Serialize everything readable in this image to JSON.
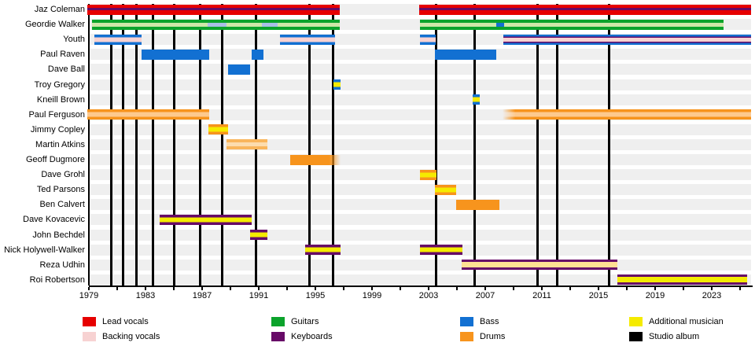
{
  "chart_data": {
    "type": "timeline",
    "description": "Band members timeline (gantt-style) with studio album release markers",
    "palette": {
      "lead_vocals": "#e60000",
      "backing_vocals": "#f7d2d2",
      "guitars": "#0ba32b",
      "keyboards": "#670a67",
      "bass": "#1270d2",
      "drums": "#f7941d",
      "additional": "#f5eb00",
      "studio_album": "#000000",
      "gloss_green": "#cde7a8",
      "gloss_orange": "#fdc98e",
      "drums_faded": "#f9b55c",
      "gloss_orange_pale": "#fcdcae",
      "bass_pale": "#a9bfe6",
      "additional_pale": "#ffe193",
      "lane_gray": "#efefef"
    },
    "axis": {
      "label_years": [
        1979,
        1983,
        1987,
        1991,
        1995,
        1999,
        2003,
        2007,
        2011,
        2015,
        2019,
        2023
      ],
      "minor_tick_start": 1979,
      "minor_tick_end": 2025,
      "minor_tick_step": 2,
      "domain_start": 1978.9,
      "domain_end": 2025.8
    },
    "albums": [
      1980.6,
      1981.4,
      1982.35,
      1983.5,
      1985.05,
      1986.85,
      1988.4,
      1990.8,
      1994.6,
      1996.25,
      2003.5,
      2006.25,
      2010.7,
      2012.1,
      2015.75
    ],
    "members": [
      {
        "name": "Jaz Coleman",
        "bars": [
          {
            "start": 1978.9,
            "end": 1996.75,
            "layers": [
              [
                "lead_vocals",
                4
              ],
              [
                "keyboards",
                3
              ],
              [
                "lead_vocals",
                6
              ]
            ]
          },
          {
            "start": 2002.35,
            "end": 2025.8,
            "layers": [
              [
                "lead_vocals",
                4
              ],
              [
                "keyboards",
                3
              ],
              [
                "lead_vocals",
                6
              ]
            ]
          }
        ]
      },
      {
        "name": "Geordie Walker",
        "bars": [
          {
            "start": 1979.2,
            "end": 1996.75,
            "layers": [
              [
                "guitars",
                4
              ],
              [
                "gloss_green",
                5
              ],
              [
                "guitars",
                4
              ]
            ],
            "overlays": [
              [
                1987.4,
                1988.7,
                "bass_pale"
              ],
              [
                1991.2,
                1992.35,
                "bass_pale"
              ]
            ]
          },
          {
            "start": 2002.4,
            "end": 2023.85,
            "layers": [
              [
                "guitars",
                4
              ],
              [
                "gloss_green",
                5
              ],
              [
                "guitars",
                4
              ]
            ],
            "overlays": [
              [
                2007.75,
                2008.35,
                "bass"
              ]
            ]
          }
        ]
      },
      {
        "name": "Youth",
        "bars": [
          {
            "start": 1979.4,
            "end": 1982.7,
            "layers": [
              [
                "bass",
                3.5
              ],
              [
                "backing_vocals",
                6
              ],
              [
                "bass",
                3.5
              ]
            ]
          },
          {
            "start": 1992.5,
            "end": 1996.4,
            "layers": [
              [
                "bass",
                3.5
              ],
              [
                "backing_vocals",
                6
              ],
              [
                "bass",
                3.5
              ]
            ]
          },
          {
            "start": 2002.4,
            "end": 2003.5,
            "layers": [
              [
                "bass",
                3.5
              ],
              [
                "backing_vocals",
                6
              ],
              [
                "bass",
                3.5
              ]
            ]
          },
          {
            "start": 2008.3,
            "end": 2025.8,
            "layers": [
              [
                "bass",
                2.5
              ],
              [
                "keyboards",
                1.5
              ],
              [
                "backing_vocals",
                5
              ],
              [
                "keyboards",
                1.5
              ],
              [
                "bass",
                2.5
              ]
            ]
          }
        ]
      },
      {
        "name": "Paul Raven",
        "bars": [
          {
            "start": 1982.7,
            "end": 1987.5,
            "layers": [
              [
                "bass",
                1
              ]
            ]
          },
          {
            "start": 1990.5,
            "end": 1991.35,
            "layers": [
              [
                "bass",
                1
              ]
            ]
          },
          {
            "start": 2003.45,
            "end": 2007.8,
            "layers": [
              [
                "bass",
                1
              ]
            ]
          }
        ]
      },
      {
        "name": "Dave Ball",
        "bars": [
          {
            "start": 1988.85,
            "end": 1990.4,
            "layers": [
              [
                "bass",
                1
              ]
            ]
          }
        ]
      },
      {
        "name": "Troy Gregory",
        "bars": [
          {
            "start": 1996.3,
            "end": 1996.8,
            "layers": [
              [
                "bass",
                3.5
              ],
              [
                "additional",
                6
              ],
              [
                "bass",
                3.5
              ]
            ]
          }
        ]
      },
      {
        "name": "Kneill Brown",
        "bars": [
          {
            "start": 2006.1,
            "end": 2006.6,
            "layers": [
              [
                "bass",
                3.5
              ],
              [
                "additional",
                6
              ],
              [
                "bass",
                3.5
              ]
            ]
          }
        ]
      },
      {
        "name": "Paul Ferguson",
        "bars": [
          {
            "start": 1978.9,
            "end": 1987.5,
            "layers": [
              [
                "drums",
                3.5
              ],
              [
                "gloss_orange",
                6
              ],
              [
                "drums",
                3.5
              ]
            ]
          },
          {
            "start": 2008.2,
            "end": 2025.8,
            "layers": [
              [
                "drums",
                3.5
              ],
              [
                "gloss_orange",
                6
              ],
              [
                "drums",
                3.5
              ]
            ],
            "fade": "left"
          }
        ]
      },
      {
        "name": "Jimmy Copley",
        "bars": [
          {
            "start": 1987.45,
            "end": 1988.85,
            "layers": [
              [
                "drums",
                3.5
              ],
              [
                "additional",
                6
              ],
              [
                "drums",
                3.5
              ]
            ]
          }
        ]
      },
      {
        "name": "Martin Atkins",
        "bars": [
          {
            "start": 1988.7,
            "end": 1991.6,
            "layers": [
              [
                "drums_faded",
                4
              ],
              [
                "gloss_orange_pale",
                5
              ],
              [
                "drums_faded",
                4
              ]
            ]
          }
        ]
      },
      {
        "name": "Geoff Dugmore",
        "bars": [
          {
            "start": 1993.2,
            "end": 1996.8,
            "layers": [
              [
                "drums",
                1
              ]
            ],
            "fade": "right"
          }
        ]
      },
      {
        "name": "Dave Grohl",
        "bars": [
          {
            "start": 2002.4,
            "end": 2003.55,
            "layers": [
              [
                "drums",
                3.5
              ],
              [
                "additional",
                6
              ],
              [
                "drums",
                3.5
              ]
            ]
          }
        ]
      },
      {
        "name": "Ted Parsons",
        "bars": [
          {
            "start": 2003.45,
            "end": 2004.95,
            "layers": [
              [
                "drums",
                3.5
              ],
              [
                "additional",
                6
              ],
              [
                "drums",
                3.5
              ]
            ]
          }
        ]
      },
      {
        "name": "Ben Calvert",
        "bars": [
          {
            "start": 2004.95,
            "end": 2008.0,
            "layers": [
              [
                "drums",
                1
              ]
            ]
          }
        ]
      },
      {
        "name": "Dave Kovacevic",
        "bars": [
          {
            "start": 1984.0,
            "end": 1990.5,
            "layers": [
              [
                "keyboards",
                3.5
              ],
              [
                "additional",
                6
              ],
              [
                "keyboards",
                3.5
              ]
            ]
          }
        ]
      },
      {
        "name": "John Bechdel",
        "bars": [
          {
            "start": 1990.4,
            "end": 1991.6,
            "layers": [
              [
                "keyboards",
                3.5
              ],
              [
                "additional",
                6
              ],
              [
                "keyboards",
                3.5
              ]
            ]
          }
        ]
      },
      {
        "name": "Nick Holywell-Walker",
        "bars": [
          {
            "start": 1994.3,
            "end": 1996.8,
            "layers": [
              [
                "keyboards",
                3.5
              ],
              [
                "additional",
                6
              ],
              [
                "keyboards",
                3.5
              ]
            ]
          },
          {
            "start": 2002.4,
            "end": 2005.4,
            "layers": [
              [
                "keyboards",
                3.5
              ],
              [
                "additional",
                6
              ],
              [
                "keyboards",
                3.5
              ]
            ]
          }
        ]
      },
      {
        "name": "Reza Udhin",
        "bars": [
          {
            "start": 2005.35,
            "end": 2016.35,
            "layers": [
              [
                "keyboards",
                3
              ],
              [
                "additional_pale",
                7
              ],
              [
                "keyboards",
                3
              ]
            ]
          }
        ]
      },
      {
        "name": "Roi Robertson",
        "bars": [
          {
            "start": 2016.35,
            "end": 2025.5,
            "layers": [
              [
                "keyboards",
                3
              ],
              [
                "additional",
                7
              ],
              [
                "keyboards",
                3
              ]
            ]
          }
        ]
      }
    ],
    "legend": {
      "columns": [
        [
          {
            "label": "Lead vocals",
            "color": "lead_vocals"
          },
          {
            "label": "Backing vocals",
            "color": "backing_vocals"
          }
        ],
        [
          {
            "label": "Guitars",
            "color": "guitars"
          },
          {
            "label": "Keyboards",
            "color": "keyboards"
          }
        ],
        [
          {
            "label": "Bass",
            "color": "bass"
          },
          {
            "label": "Drums",
            "color": "drums"
          }
        ],
        [
          {
            "label": "Additional musician",
            "color": "additional"
          },
          {
            "label": "Studio album",
            "color": "studio_album"
          }
        ]
      ]
    }
  }
}
